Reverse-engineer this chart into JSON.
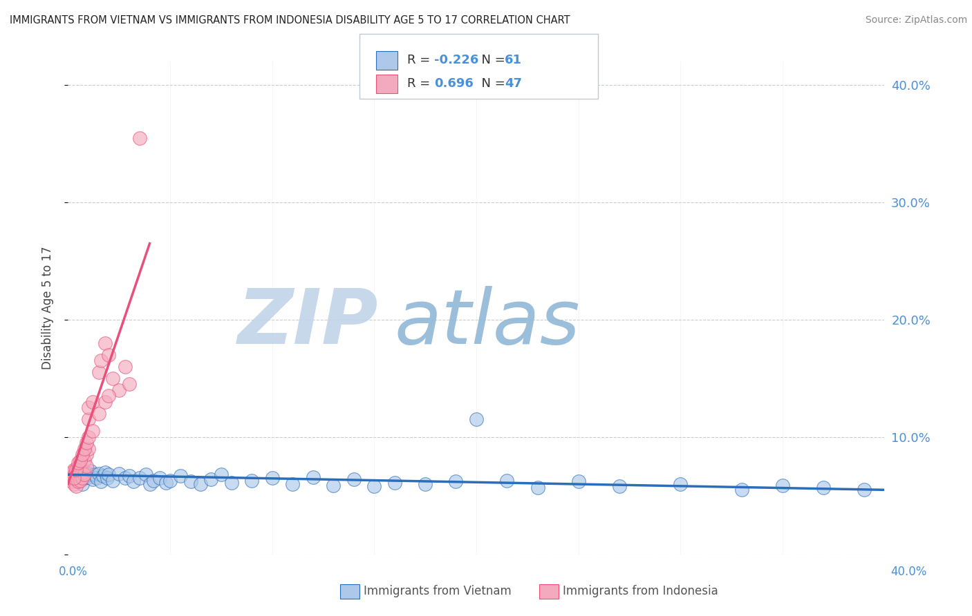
{
  "title": "IMMIGRANTS FROM VIETNAM VS IMMIGRANTS FROM INDONESIA DISABILITY AGE 5 TO 17 CORRELATION CHART",
  "source": "Source: ZipAtlas.com",
  "ylabel": "Disability Age 5 to 17",
  "ytick_vals": [
    0.0,
    0.1,
    0.2,
    0.3,
    0.4
  ],
  "xlim": [
    0.0,
    0.4
  ],
  "ylim": [
    0.0,
    0.42
  ],
  "vietnam_color": "#adc8e8",
  "indonesia_color": "#f4aabe",
  "vietnam_line_color": "#2a6ebb",
  "indonesia_line_color": "#e8507a",
  "R_vietnam": -0.226,
  "N_vietnam": 61,
  "R_indonesia": 0.696,
  "N_indonesia": 47,
  "watermark_zip": "ZIP",
  "watermark_atlas": "atlas",
  "watermark_color_zip": "#c0d4e8",
  "watermark_color_atlas": "#90b8d8",
  "legend_label_vietnam": "Immigrants from Vietnam",
  "legend_label_indonesia": "Immigrants from Indonesia",
  "vietnam_scatter": [
    [
      0.002,
      0.068
    ],
    [
      0.003,
      0.071
    ],
    [
      0.004,
      0.065
    ],
    [
      0.005,
      0.07
    ],
    [
      0.005,
      0.065
    ],
    [
      0.006,
      0.068
    ],
    [
      0.007,
      0.072
    ],
    [
      0.007,
      0.06
    ],
    [
      0.008,
      0.069
    ],
    [
      0.008,
      0.065
    ],
    [
      0.009,
      0.07
    ],
    [
      0.01,
      0.066
    ],
    [
      0.01,
      0.068
    ],
    [
      0.011,
      0.071
    ],
    [
      0.012,
      0.064
    ],
    [
      0.013,
      0.068
    ],
    [
      0.014,
      0.065
    ],
    [
      0.015,
      0.069
    ],
    [
      0.016,
      0.062
    ],
    [
      0.017,
      0.067
    ],
    [
      0.018,
      0.07
    ],
    [
      0.019,
      0.065
    ],
    [
      0.02,
      0.068
    ],
    [
      0.022,
      0.063
    ],
    [
      0.025,
      0.069
    ],
    [
      0.028,
      0.065
    ],
    [
      0.03,
      0.067
    ],
    [
      0.032,
      0.062
    ],
    [
      0.035,
      0.065
    ],
    [
      0.038,
      0.068
    ],
    [
      0.04,
      0.06
    ],
    [
      0.042,
      0.063
    ],
    [
      0.045,
      0.065
    ],
    [
      0.048,
      0.061
    ],
    [
      0.05,
      0.063
    ],
    [
      0.055,
      0.067
    ],
    [
      0.06,
      0.062
    ],
    [
      0.065,
      0.06
    ],
    [
      0.07,
      0.064
    ],
    [
      0.075,
      0.068
    ],
    [
      0.08,
      0.061
    ],
    [
      0.09,
      0.063
    ],
    [
      0.1,
      0.065
    ],
    [
      0.11,
      0.06
    ],
    [
      0.12,
      0.066
    ],
    [
      0.13,
      0.059
    ],
    [
      0.14,
      0.064
    ],
    [
      0.15,
      0.058
    ],
    [
      0.16,
      0.061
    ],
    [
      0.175,
      0.06
    ],
    [
      0.19,
      0.062
    ],
    [
      0.2,
      0.115
    ],
    [
      0.215,
      0.063
    ],
    [
      0.23,
      0.057
    ],
    [
      0.25,
      0.062
    ],
    [
      0.27,
      0.058
    ],
    [
      0.3,
      0.06
    ],
    [
      0.33,
      0.055
    ],
    [
      0.35,
      0.059
    ],
    [
      0.37,
      0.057
    ],
    [
      0.39,
      0.055
    ]
  ],
  "indonesia_scatter": [
    [
      0.001,
      0.068
    ],
    [
      0.002,
      0.065
    ],
    [
      0.002,
      0.07
    ],
    [
      0.002,
      0.062
    ],
    [
      0.003,
      0.068
    ],
    [
      0.003,
      0.06
    ],
    [
      0.003,
      0.072
    ],
    [
      0.004,
      0.065
    ],
    [
      0.004,
      0.058
    ],
    [
      0.004,
      0.07
    ],
    [
      0.005,
      0.067
    ],
    [
      0.005,
      0.062
    ],
    [
      0.005,
      0.075
    ],
    [
      0.006,
      0.068
    ],
    [
      0.006,
      0.063
    ],
    [
      0.006,
      0.072
    ],
    [
      0.007,
      0.07
    ],
    [
      0.007,
      0.065
    ],
    [
      0.008,
      0.08
    ],
    [
      0.008,
      0.068
    ],
    [
      0.009,
      0.075
    ],
    [
      0.009,
      0.085
    ],
    [
      0.01,
      0.09
    ],
    [
      0.01,
      0.115
    ],
    [
      0.01,
      0.125
    ],
    [
      0.012,
      0.13
    ],
    [
      0.015,
      0.155
    ],
    [
      0.016,
      0.165
    ],
    [
      0.018,
      0.18
    ],
    [
      0.02,
      0.17
    ],
    [
      0.022,
      0.15
    ],
    [
      0.025,
      0.14
    ],
    [
      0.028,
      0.16
    ],
    [
      0.03,
      0.145
    ],
    [
      0.035,
      0.355
    ],
    [
      0.003,
      0.065
    ],
    [
      0.004,
      0.072
    ],
    [
      0.005,
      0.078
    ],
    [
      0.006,
      0.08
    ],
    [
      0.007,
      0.085
    ],
    [
      0.008,
      0.09
    ],
    [
      0.009,
      0.095
    ],
    [
      0.01,
      0.1
    ],
    [
      0.012,
      0.105
    ],
    [
      0.015,
      0.12
    ],
    [
      0.018,
      0.13
    ],
    [
      0.02,
      0.135
    ]
  ]
}
